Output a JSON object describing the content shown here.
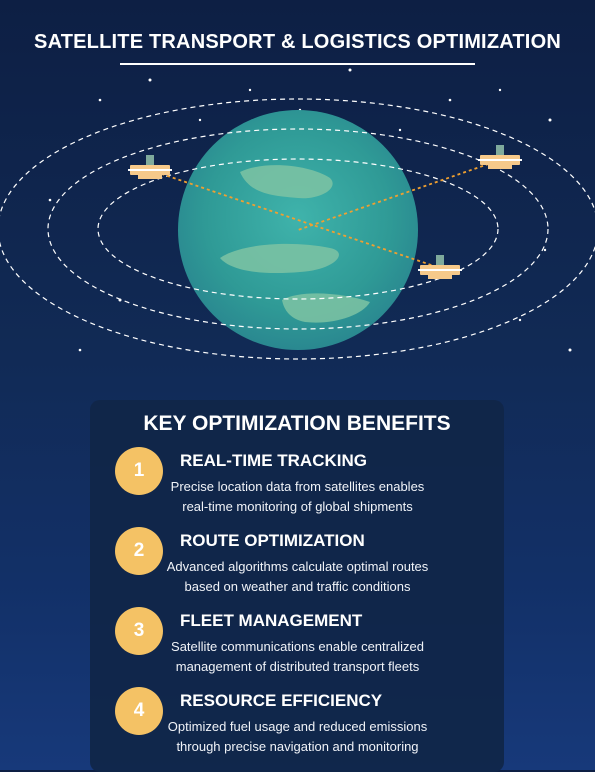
{
  "header": {
    "title": "SATELLITE TRANSPORT & LOGISTICS OPTIMIZATION"
  },
  "illustration": {
    "planet_color": "#3aa6a0",
    "land_color": "#7ec3a3",
    "satellite_body_color": "#f6c98a",
    "satellite_panel_color": "#ffffff",
    "link_color": "#f0a030",
    "orbit_color": "#ffffff",
    "satellites": [
      {
        "name": "satellite-1"
      },
      {
        "name": "satellite-2"
      },
      {
        "name": "satellite-3"
      }
    ]
  },
  "panel": {
    "title": "KEY OPTIMIZATION BENEFITS",
    "badge_color": "#f4c265",
    "benefits": [
      {
        "number": "1",
        "title": "REAL-TIME TRACKING",
        "line1": "Precise location data from satellites enables",
        "line2": "real-time monitoring of global shipments"
      },
      {
        "number": "2",
        "title": "ROUTE OPTIMIZATION",
        "line1": "Advanced algorithms calculate optimal routes",
        "line2": "based on weather and traffic conditions"
      },
      {
        "number": "3",
        "title": "FLEET MANAGEMENT",
        "line1": "Satellite communications enable centralized",
        "line2": "management of distributed transport fleets"
      },
      {
        "number": "4",
        "title": "RESOURCE EFFICIENCY",
        "line1": "Optimized fuel usage and reduced emissions",
        "line2": "through precise navigation and monitoring"
      }
    ]
  }
}
